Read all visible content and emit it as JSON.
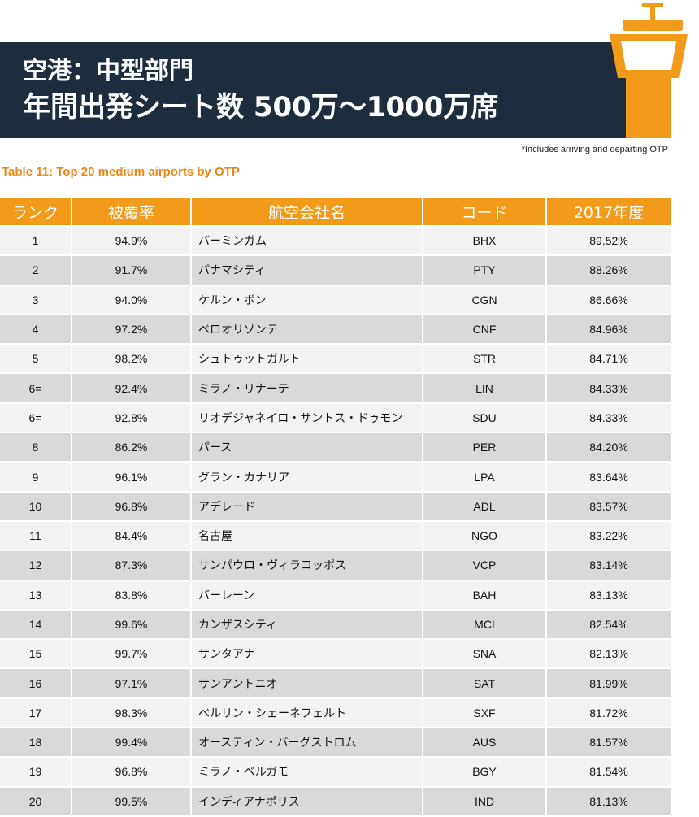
{
  "header": {
    "title": [
      "空港：中型部門",
      "年間出発シート数 500万〜1000万席"
    ],
    "note": "*Includes arriving and departing OTP",
    "caption": "Table 11: Top 20 medium airports by OTP"
  },
  "table": {
    "columns": [
      "ランク",
      "被覆率",
      "航空会社名",
      "コード",
      "2017年度"
    ],
    "rows": [
      [
        "1",
        "94.9%",
        "バーミンガム",
        "BHX",
        "89.52%"
      ],
      [
        "2",
        "91.7%",
        "パナマシティ",
        "PTY",
        "88.26%"
      ],
      [
        "3",
        "94.0%",
        "ケルン・ボン",
        "CGN",
        "86.66%"
      ],
      [
        "4",
        "97.2%",
        "ベロオリゾンテ",
        "CNF",
        "84.96%"
      ],
      [
        "5",
        "98.2%",
        "シュトゥットガルト",
        "STR",
        "84.71%"
      ],
      [
        "6=",
        "92.4%",
        "ミラノ・リナーテ",
        "LIN",
        "84.33%"
      ],
      [
        "6=",
        "92.8%",
        "リオデジャネイロ・サントス・ドゥモン",
        "SDU",
        "84.33%"
      ],
      [
        "8",
        "86.2%",
        "パース",
        "PER",
        "84.20%"
      ],
      [
        "9",
        "96.1%",
        "グラン・カナリア",
        "LPA",
        "83.64%"
      ],
      [
        "10",
        "96.8%",
        "アデレード",
        "ADL",
        "83.57%"
      ],
      [
        "11",
        "84.4%",
        "名古屋",
        "NGO",
        "83.22%"
      ],
      [
        "12",
        "87.3%",
        "サンパウロ・ヴィラコッポス",
        "VCP",
        "83.14%"
      ],
      [
        "13",
        "83.8%",
        "バーレーン",
        "BAH",
        "83.13%"
      ],
      [
        "14",
        "99.6%",
        "カンザスシティ",
        "MCI",
        "82.54%"
      ],
      [
        "15",
        "99.7%",
        "サンタアナ",
        "SNA",
        "82.13%"
      ],
      [
        "16",
        "97.1%",
        "サンアントニオ",
        "SAT",
        "81.99%"
      ],
      [
        "17",
        "98.3%",
        "ベルリン・シェーネフェルト",
        "SXF",
        "81.72%"
      ],
      [
        "18",
        "99.4%",
        "オースティン・バーグストロム",
        "AUS",
        "81.57%"
      ],
      [
        "19",
        "96.8%",
        "ミラノ・ベルガモ",
        "BGY",
        "81.54%"
      ],
      [
        "20",
        "99.5%",
        "インディアナポリス",
        "IND",
        "81.13%"
      ]
    ]
  }
}
